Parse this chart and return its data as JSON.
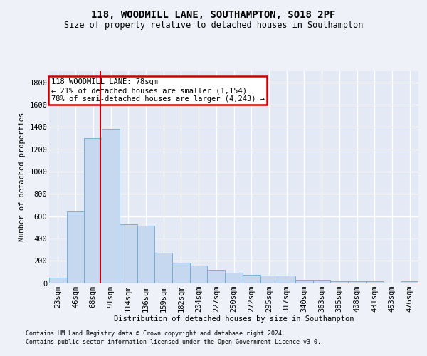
{
  "title1": "118, WOODMILL LANE, SOUTHAMPTON, SO18 2PF",
  "title2": "Size of property relative to detached houses in Southampton",
  "xlabel": "Distribution of detached houses by size in Southampton",
  "ylabel": "Number of detached properties",
  "categories": [
    "23sqm",
    "46sqm",
    "68sqm",
    "91sqm",
    "114sqm",
    "136sqm",
    "159sqm",
    "182sqm",
    "204sqm",
    "227sqm",
    "250sqm",
    "272sqm",
    "295sqm",
    "317sqm",
    "340sqm",
    "363sqm",
    "385sqm",
    "408sqm",
    "431sqm",
    "453sqm",
    "476sqm"
  ],
  "values": [
    50,
    640,
    1300,
    1380,
    530,
    515,
    270,
    185,
    155,
    120,
    95,
    75,
    70,
    70,
    28,
    28,
    18,
    18,
    18,
    5,
    18
  ],
  "bar_color": "#c5d8f0",
  "bar_edge_color": "#6aaad4",
  "annotation_text_line1": "118 WOODMILL LANE: 78sqm",
  "annotation_text_line2": "← 21% of detached houses are smaller (1,154)",
  "annotation_text_line3": "78% of semi-detached houses are larger (4,243) →",
  "annotation_box_color": "#ffffff",
  "annotation_box_edge": "#cc0000",
  "vline_color": "#cc0000",
  "vline_x_index": 2.43,
  "footnote1": "Contains HM Land Registry data © Crown copyright and database right 2024.",
  "footnote2": "Contains public sector information licensed under the Open Government Licence v3.0.",
  "ylim": [
    0,
    1900
  ],
  "yticks": [
    0,
    200,
    400,
    600,
    800,
    1000,
    1200,
    1400,
    1600,
    1800
  ],
  "background_color": "#eef2f8",
  "plot_bg_color": "#e4eaf5",
  "grid_color": "#ffffff",
  "title1_fontsize": 10,
  "title2_fontsize": 8.5,
  "axis_fontsize": 7.5,
  "tick_fontsize": 7.5,
  "annot_fontsize": 7.5,
  "footnote_fontsize": 6.0
}
